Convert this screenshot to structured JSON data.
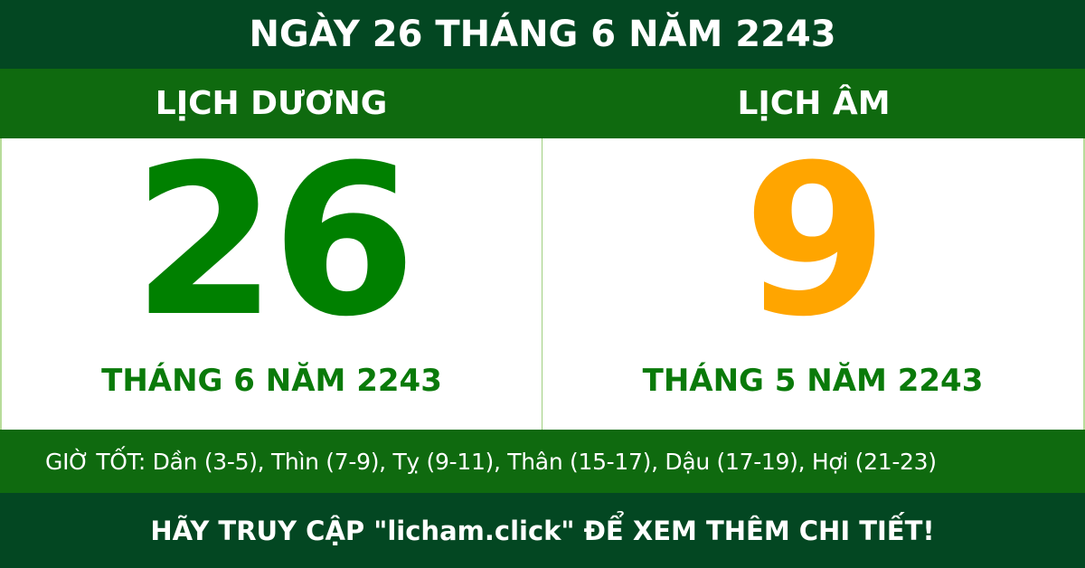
{
  "title": "NGÀY 26 THÁNG 6 NĂM 2243",
  "solar": {
    "label": "LỊCH DƯƠNG",
    "day": "26",
    "month_year": "THÁNG 6 NĂM 2243"
  },
  "lunar": {
    "label": "LỊCH ÂM",
    "day": "9",
    "month_year": "THÁNG 5 NĂM 2243"
  },
  "good_hours": "GIỜ TỐT: Dần (3-5), Thìn (7-9), Tỵ (9-11), Thân (15-17), Dậu (17-19), Hợi (21-23)",
  "footer": "HÃY TRUY CẬP \"licham.click\" ĐỂ XEM THÊM CHI TIẾT!",
  "colors": {
    "dark_green": "#034722",
    "band_green": "#0f6a0f",
    "solar_day": "#008000",
    "lunar_day": "#ffa500"
  }
}
